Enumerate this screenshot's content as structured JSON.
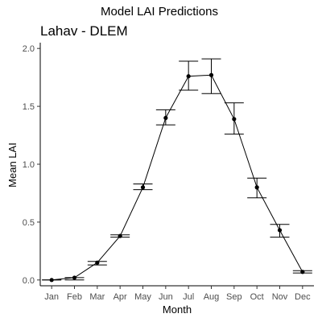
{
  "figure": {
    "suptitle": "Model LAI Predictions",
    "panel_title": "Lahav - DLEM"
  },
  "chart_data": {
    "type": "line",
    "title": "Lahav - DLEM",
    "xlabel": "Month",
    "ylabel": "Mean LAI",
    "categories": [
      "Jan",
      "Feb",
      "Mar",
      "Apr",
      "May",
      "Jun",
      "Jul",
      "Aug",
      "Sep",
      "Oct",
      "Nov",
      "Dec"
    ],
    "yticks": [
      "0.0",
      "0.5",
      "1.0",
      "1.5",
      "2.0"
    ],
    "ylim": [
      -0.05,
      2.05
    ],
    "grid": false,
    "series": [
      {
        "values": [
          0.0,
          0.02,
          0.15,
          0.38,
          0.8,
          1.4,
          1.76,
          1.77,
          1.39,
          0.8,
          0.43,
          0.07
        ],
        "error_low": [
          0.0,
          0.0,
          0.13,
          0.37,
          0.78,
          1.34,
          1.64,
          1.61,
          1.26,
          0.71,
          0.37,
          0.06
        ],
        "error_high": [
          0.0,
          0.02,
          0.16,
          0.39,
          0.83,
          1.47,
          1.89,
          1.91,
          1.53,
          0.88,
          0.48,
          0.08
        ]
      }
    ]
  }
}
